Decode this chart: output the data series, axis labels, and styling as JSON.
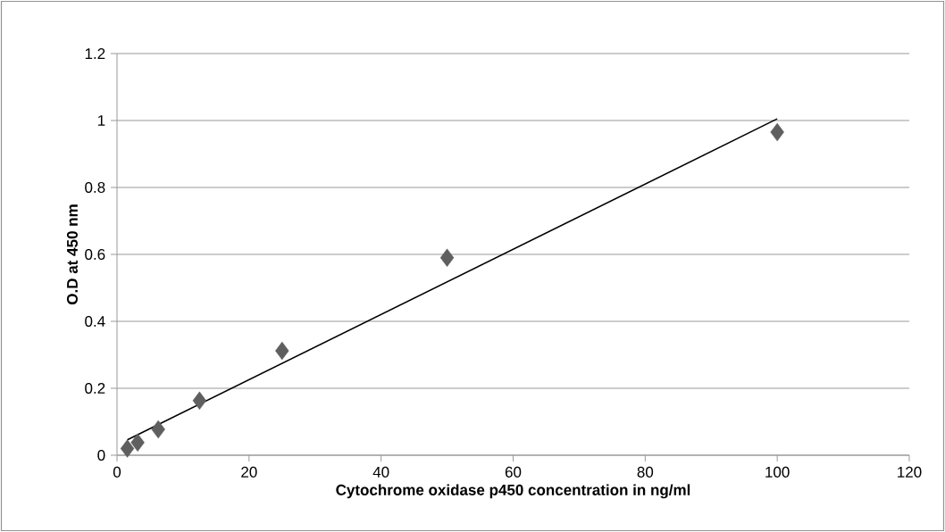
{
  "chart_data": {
    "type": "scatter",
    "xlabel": "Cytochrome oxidase p450 concentration in ng/ml",
    "ylabel": "O.D at 450 nm",
    "x": [
      1.5625,
      3.125,
      6.25,
      12.5,
      25,
      50,
      100
    ],
    "series": [
      {
        "color": "#5f5f5f",
        "marker": "diamond",
        "values": [
          0.02,
          0.038,
          0.077,
          0.163,
          0.312,
          0.59,
          0.965
        ]
      },
      {
        "type": "line",
        "color": "#000000",
        "marker": "none",
        "line_style": "solid",
        "x": [
          1.5625,
          100
        ],
        "values": [
          0.046,
          1.005
        ]
      }
    ],
    "xlim": [
      0,
      120
    ],
    "ylim": [
      0,
      1.2
    ],
    "xticks": [
      0,
      20,
      40,
      60,
      80,
      100,
      120
    ],
    "yticks": [
      0,
      0.2,
      0.4,
      0.6,
      0.8,
      1,
      {
        "value": 1.2,
        "label": "1.2"
      }
    ],
    "grid": "y"
  }
}
